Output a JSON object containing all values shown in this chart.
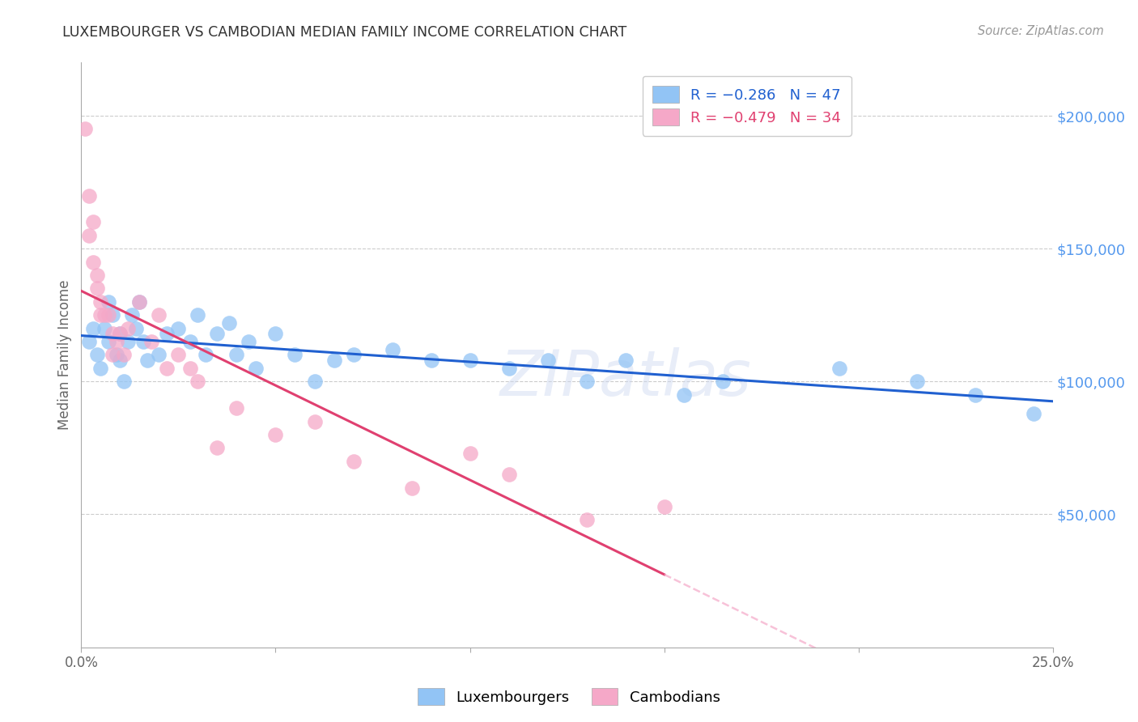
{
  "title": "LUXEMBOURGER VS CAMBODIAN MEDIAN FAMILY INCOME CORRELATION CHART",
  "source": "Source: ZipAtlas.com",
  "ylabel": "Median Family Income",
  "ytick_labels": [
    "$50,000",
    "$100,000",
    "$150,000",
    "$200,000"
  ],
  "ytick_values": [
    50000,
    100000,
    150000,
    200000
  ],
  "ylim": [
    0,
    220000
  ],
  "xlim": [
    0.0,
    0.25
  ],
  "watermark": "ZIPatlas",
  "blue_color": "#92c4f5",
  "pink_color": "#f5a8c8",
  "blue_line_color": "#2060d0",
  "pink_line_color": "#e04070",
  "grid_color": "#cccccc",
  "title_color": "#333333",
  "ytick_color": "#5599ee",
  "lux_x": [
    0.002,
    0.003,
    0.004,
    0.005,
    0.006,
    0.007,
    0.007,
    0.008,
    0.009,
    0.01,
    0.01,
    0.011,
    0.012,
    0.013,
    0.014,
    0.015,
    0.016,
    0.017,
    0.02,
    0.022,
    0.025,
    0.028,
    0.03,
    0.032,
    0.035,
    0.038,
    0.04,
    0.043,
    0.045,
    0.05,
    0.055,
    0.06,
    0.065,
    0.07,
    0.08,
    0.09,
    0.1,
    0.11,
    0.12,
    0.13,
    0.14,
    0.155,
    0.165,
    0.195,
    0.215,
    0.23,
    0.245
  ],
  "lux_y": [
    115000,
    120000,
    110000,
    105000,
    120000,
    130000,
    115000,
    125000,
    110000,
    118000,
    108000,
    100000,
    115000,
    125000,
    120000,
    130000,
    115000,
    108000,
    110000,
    118000,
    120000,
    115000,
    125000,
    110000,
    118000,
    122000,
    110000,
    115000,
    105000,
    118000,
    110000,
    100000,
    108000,
    110000,
    112000,
    108000,
    108000,
    105000,
    108000,
    100000,
    108000,
    95000,
    100000,
    105000,
    100000,
    95000,
    88000
  ],
  "cam_x": [
    0.001,
    0.002,
    0.002,
    0.003,
    0.003,
    0.004,
    0.004,
    0.005,
    0.005,
    0.006,
    0.007,
    0.008,
    0.008,
    0.009,
    0.01,
    0.011,
    0.012,
    0.015,
    0.018,
    0.02,
    0.022,
    0.025,
    0.028,
    0.03,
    0.035,
    0.04,
    0.05,
    0.06,
    0.07,
    0.085,
    0.1,
    0.11,
    0.13,
    0.15
  ],
  "cam_y": [
    195000,
    170000,
    155000,
    160000,
    145000,
    140000,
    135000,
    130000,
    125000,
    125000,
    125000,
    118000,
    110000,
    115000,
    118000,
    110000,
    120000,
    130000,
    115000,
    125000,
    105000,
    110000,
    105000,
    100000,
    75000,
    90000,
    80000,
    85000,
    70000,
    60000,
    73000,
    65000,
    48000,
    53000
  ]
}
